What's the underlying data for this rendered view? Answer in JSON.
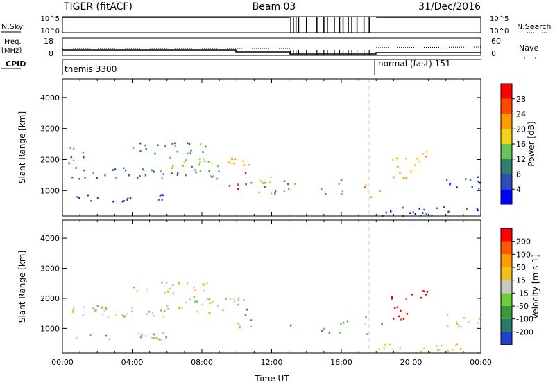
{
  "header": {
    "radar": "TIGER (fitACF)",
    "beam": "Beam 03",
    "date": "31/Dec/2016"
  },
  "strips": {
    "nsky_label": "N.Sky",
    "nsky_ticks": [
      "10^5",
      "10^0"
    ],
    "nsearch_label": "N.Search",
    "nsearch_ticks": [
      "10^5",
      "10^0"
    ],
    "freq_label_1": "Freq.",
    "freq_label_2": "[MHz]",
    "freq_ticks": [
      "18",
      "8"
    ],
    "nave_label": "Nave",
    "nave_ticks": [
      "60",
      "0"
    ],
    "cpid_label": "CPID",
    "cpid_segments": [
      {
        "name": "themis 3300",
        "start_h": 0,
        "end_h": 17.9
      },
      {
        "name": "normal (fast) 151",
        "start_h": 17.9,
        "end_h": 24
      }
    ]
  },
  "axes": {
    "xlabel": "Time UT",
    "x_ticks": [
      "00:00",
      "04:00",
      "08:00",
      "12:00",
      "16:00",
      "20:00",
      "00:00"
    ],
    "ylabel": "Slant Range [km]",
    "y_ticks": [
      "1000",
      "2000",
      "3000",
      "4000"
    ]
  },
  "chart_data": [
    {
      "type": "heatmap",
      "title": "",
      "xlabel": "",
      "ylabel": "Slant Range [km]",
      "xlim": [
        0,
        24
      ],
      "ylim": [
        180,
        4600
      ],
      "colorbar": {
        "label": "Power [dB]",
        "ticks": [
          "28",
          "24",
          "20",
          "16",
          "12",
          "8",
          "4"
        ],
        "colors": [
          "#0000ff",
          "#2a4fb8",
          "#2f7f6a",
          "#69c25a",
          "#f2d21a",
          "#ff9a00",
          "#ff4a00",
          "#ff0000"
        ]
      },
      "regions": [
        {
          "t": [
            0.3,
            1.4
          ],
          "r": [
            1900,
            2500
          ],
          "level": 2
        },
        {
          "t": [
            0.2,
            6
          ],
          "r": [
            650,
            900
          ],
          "level": 1
        },
        {
          "t": [
            0.5,
            9.5
          ],
          "r": [
            1400,
            1800
          ],
          "level": 2
        },
        {
          "t": [
            4,
            8.5
          ],
          "r": [
            2200,
            2600
          ],
          "level": 2
        },
        {
          "t": [
            6,
            10.5
          ],
          "r": [
            1800,
            2100
          ],
          "level": 4
        },
        {
          "t": [
            8.3,
            10.3
          ],
          "r": [
            1900,
            2100
          ],
          "level": 5
        },
        {
          "t": [
            9.5,
            10.8
          ],
          "r": [
            1000,
            1250
          ],
          "level": 7
        },
        {
          "t": [
            10.3,
            10.8
          ],
          "r": [
            1300,
            1900
          ],
          "level": 6
        },
        {
          "t": [
            10.5,
            13
          ],
          "r": [
            900,
            1500
          ],
          "level": 3
        },
        {
          "t": [
            13.0,
            13.3
          ],
          "r": [
            900,
            1300
          ],
          "level": 5
        },
        {
          "t": [
            14.7,
            15.3
          ],
          "r": [
            800,
            1300
          ],
          "level": 3
        },
        {
          "t": [
            15.8,
            16.4
          ],
          "r": [
            800,
            1400
          ],
          "level": 3
        },
        {
          "t": [
            17.3,
            17.7
          ],
          "r": [
            800,
            1400
          ],
          "level": 5
        },
        {
          "t": [
            17.9,
            24
          ],
          "r": [
            200,
            500
          ],
          "level": 1
        },
        {
          "t": [
            18,
            18.4
          ],
          "r": [
            1000,
            1200
          ],
          "level": 5
        },
        {
          "t": [
            18.8,
            20
          ],
          "r": [
            1300,
            2100
          ],
          "level": 4
        },
        {
          "t": [
            20,
            21
          ],
          "r": [
            1800,
            2300
          ],
          "level": 5
        },
        {
          "t": [
            22,
            24
          ],
          "r": [
            1000,
            1500
          ],
          "level": 1
        }
      ]
    },
    {
      "type": "heatmap",
      "title": "",
      "xlabel": "Time UT",
      "ylabel": "Slant Range [km]",
      "xlim": [
        0,
        24
      ],
      "ylim": [
        180,
        4600
      ],
      "colorbar": {
        "label": "Velocity [m s-1]",
        "ticks": [
          "200",
          "100",
          "50",
          "15",
          "-15",
          "-50",
          "-100",
          "-200"
        ],
        "colors": [
          "#2040c8",
          "#2a7a6a",
          "#3a9a3a",
          "#6ccc3a",
          "#c8c8c0",
          "#f0c020",
          "#ff9a00",
          "#ff5a00",
          "#ff0000"
        ]
      },
      "regions": [
        {
          "t": [
            0.2,
            6
          ],
          "r": [
            650,
            900
          ],
          "level": 3
        },
        {
          "t": [
            0.5,
            9.5
          ],
          "r": [
            1400,
            1800
          ],
          "level": 4
        },
        {
          "t": [
            4,
            8.5
          ],
          "r": [
            2200,
            2600
          ],
          "level": 4
        },
        {
          "t": [
            6,
            10.5
          ],
          "r": [
            1800,
            2100
          ],
          "level": 4
        },
        {
          "t": [
            8.3,
            10.3
          ],
          "r": [
            1900,
            2100
          ],
          "level": 4
        },
        {
          "t": [
            9.5,
            10.8
          ],
          "r": [
            1000,
            1250
          ],
          "level": 4
        },
        {
          "t": [
            10.3,
            10.8
          ],
          "r": [
            1300,
            1900
          ],
          "level": 1
        },
        {
          "t": [
            13.0,
            13.3
          ],
          "r": [
            900,
            1300
          ],
          "level": 2
        },
        {
          "t": [
            14.7,
            15.3
          ],
          "r": [
            800,
            1300
          ],
          "level": 2
        },
        {
          "t": [
            15.8,
            16.4
          ],
          "r": [
            800,
            1400
          ],
          "level": 2
        },
        {
          "t": [
            17.3,
            17.7
          ],
          "r": [
            800,
            1400
          ],
          "level": 3
        },
        {
          "t": [
            17.9,
            24
          ],
          "r": [
            200,
            500
          ],
          "level": 5
        },
        {
          "t": [
            18,
            18.4
          ],
          "r": [
            1000,
            1200
          ],
          "level": 3
        },
        {
          "t": [
            18.8,
            20
          ],
          "r": [
            1300,
            2100
          ],
          "level": 8
        },
        {
          "t": [
            20,
            21
          ],
          "r": [
            1800,
            2300
          ],
          "level": 8
        },
        {
          "t": [
            22,
            24
          ],
          "r": [
            1000,
            1500
          ],
          "level": 4
        }
      ]
    }
  ]
}
